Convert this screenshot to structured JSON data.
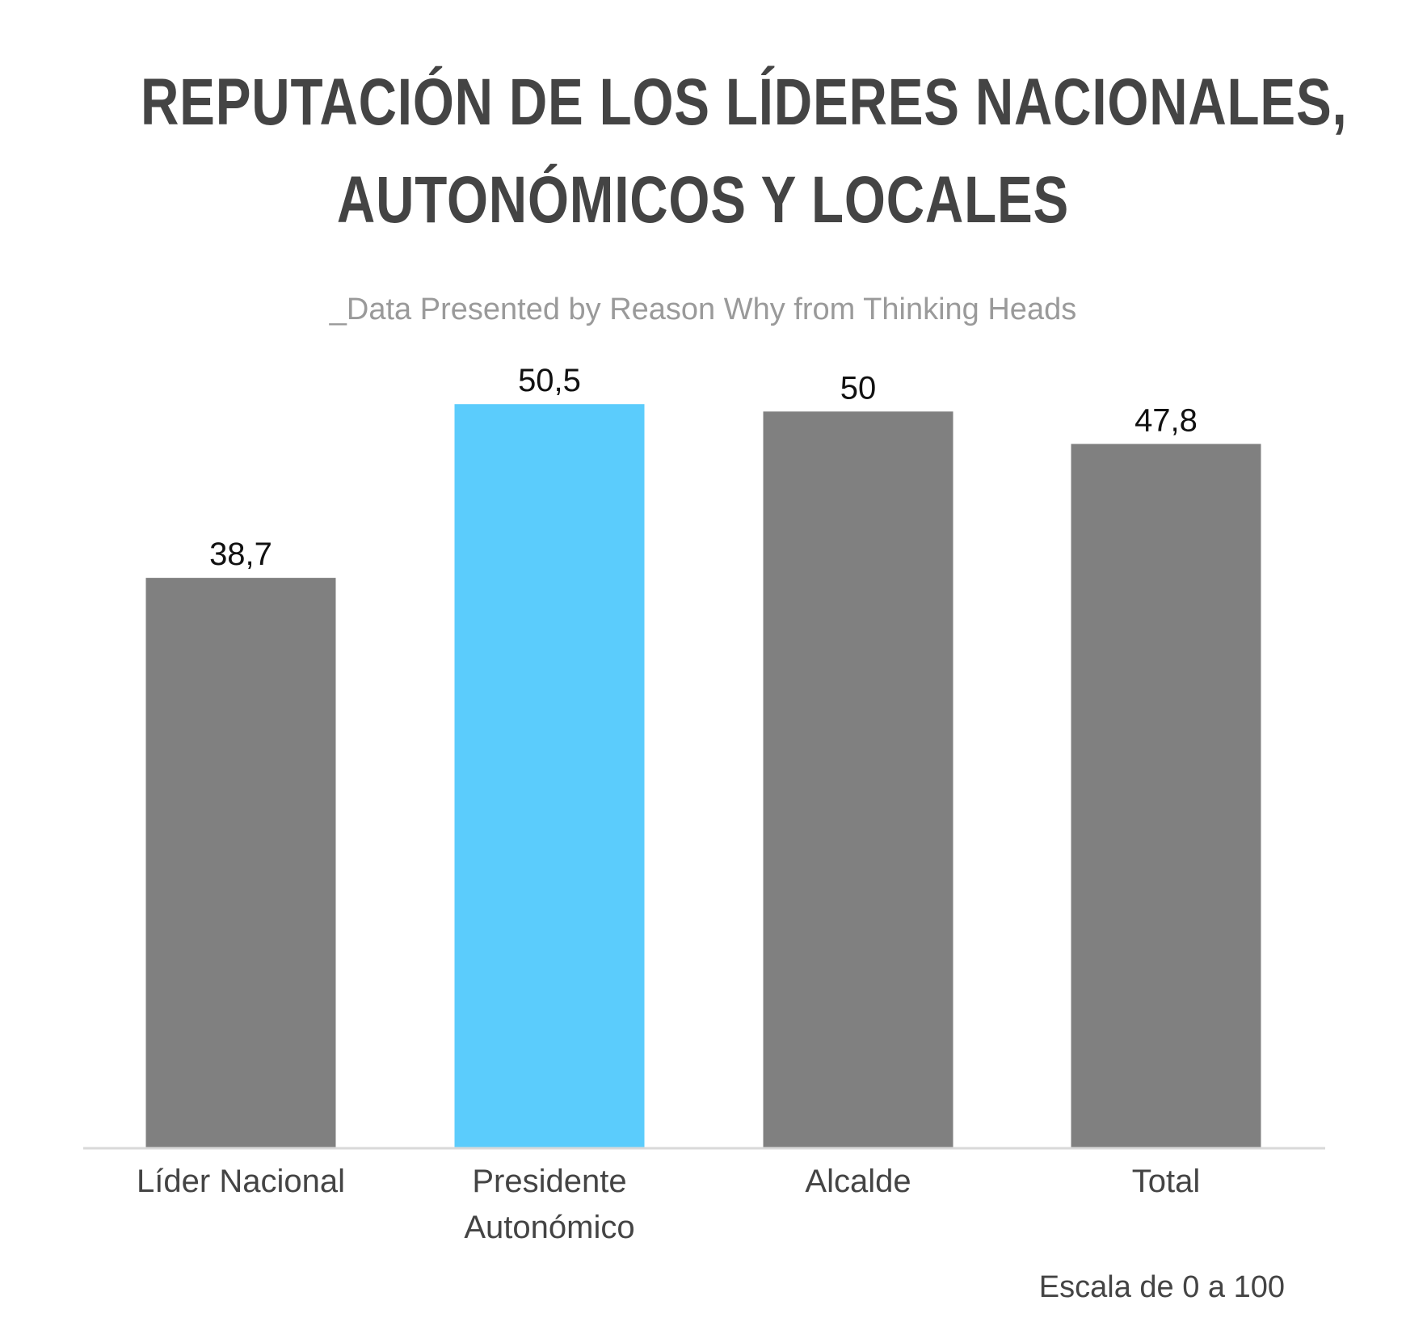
{
  "title": {
    "line1": "REPUTACIÓN DE LOS LÍDERES NACIONALES,",
    "line2": "AUTONÓMICOS Y LOCALES"
  },
  "subtitle": "_Data Presented by Reason Why from Thinking Heads",
  "note": "Escala de 0 a 100",
  "colors": {
    "bar_default": "#808080",
    "bar_highlight": "#5bccfc",
    "axis": "#d9d9d9",
    "title": "#444444",
    "subtitle": "#9a9a9a",
    "label": "#444444",
    "value_label": "#111111"
  },
  "chart_data": {
    "type": "bar",
    "categories": [
      [
        "Líder Nacional"
      ],
      [
        "Presidente",
        "Autonómico"
      ],
      [
        "Alcalde"
      ],
      [
        "Total"
      ]
    ],
    "values": [
      38.7,
      50.5,
      50,
      47.8
    ],
    "value_labels": [
      "38,7",
      "50,5",
      "50",
      "47,8"
    ],
    "highlight_index": 1,
    "title": "REPUTACIÓN DE LOS LÍDERES NACIONALES, AUTONÓMICOS Y LOCALES",
    "xlabel": "",
    "ylabel": "",
    "ylim": [
      0,
      56
    ],
    "grid": false,
    "legend": "none"
  }
}
